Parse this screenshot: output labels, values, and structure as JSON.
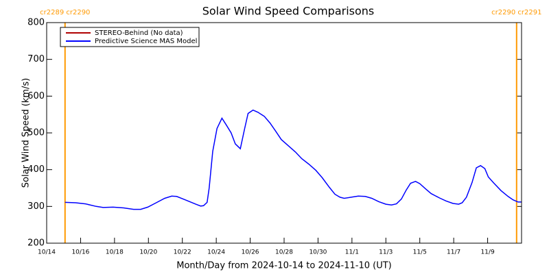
{
  "chart_data": {
    "type": "line",
    "title": "Solar Wind Speed Comparisons",
    "xlabel": "Month/Day from 2024-10-14 to 2024-11-10 (UT)",
    "ylabel": "Solar Wind Speed (km/s)",
    "xlim": [
      "2024-10-14T00:00",
      "2024-11-11T00:00"
    ],
    "ylim": [
      200,
      800
    ],
    "yticks": [
      200,
      300,
      400,
      500,
      600,
      700,
      800
    ],
    "xticks": [
      {
        "value": "2024-10-14",
        "label": "10/14"
      },
      {
        "value": "2024-10-16",
        "label": "10/16"
      },
      {
        "value": "2024-10-18",
        "label": "10/18"
      },
      {
        "value": "2024-10-20",
        "label": "10/20"
      },
      {
        "value": "2024-10-22",
        "label": "10/22"
      },
      {
        "value": "2024-10-24",
        "label": "10/24"
      },
      {
        "value": "2024-10-26",
        "label": "10/26"
      },
      {
        "value": "2024-10-28",
        "label": "10/28"
      },
      {
        "value": "2024-10-30",
        "label": "10/30"
      },
      {
        "value": "2024-11-01",
        "label": "11/1"
      },
      {
        "value": "2024-11-03",
        "label": "11/3"
      },
      {
        "value": "2024-11-05",
        "label": "11/5"
      },
      {
        "value": "2024-11-07",
        "label": "11/7"
      },
      {
        "value": "2024-11-09",
        "label": "11/9"
      }
    ],
    "legend": "upper left",
    "annotations": [
      {
        "text": "cr2289 cr2290",
        "x": "2024-10-15T02:00",
        "color": "#ff9900"
      },
      {
        "text": "cr2290 cr2291",
        "x": "2024-11-10T17:00",
        "color": "#ff9900"
      }
    ],
    "x": [
      "2024-10-15T02:00",
      "2024-10-15T17:00",
      "2024-10-16T07:00",
      "2024-10-16T22:00",
      "2024-10-17T08:00",
      "2024-10-17T22:00",
      "2024-10-18T13:00",
      "2024-10-19T03:00",
      "2024-10-19T13:00",
      "2024-10-19T23:00",
      "2024-10-20T11:00",
      "2024-10-20T23:00",
      "2024-10-21T09:00",
      "2024-10-21T16:00",
      "2024-10-22T04:00",
      "2024-10-22T19:00",
      "2024-10-23T02:00",
      "2024-10-23T06:00",
      "2024-10-23T11:00",
      "2024-10-23T14:00",
      "2024-10-23T19:00",
      "2024-10-24T01:00",
      "2024-10-24T08:00",
      "2024-10-24T14:00",
      "2024-10-24T21:00",
      "2024-10-25T03:00",
      "2024-10-25T10:00",
      "2024-10-25T16:00",
      "2024-10-25T21:00",
      "2024-10-26T04:00",
      "2024-10-26T11:00",
      "2024-10-26T20:00",
      "2024-10-27T04:00",
      "2024-10-27T12:00",
      "2024-10-27T20:00",
      "2024-10-28T06:00",
      "2024-10-28T16:00",
      "2024-10-29T01:00",
      "2024-10-29T11:00",
      "2024-10-29T21:00",
      "2024-10-30T06:00",
      "2024-10-30T16:00",
      "2024-10-31T00:00",
      "2024-10-31T07:00",
      "2024-10-31T13:00",
      "2024-10-31T23:00",
      "2024-11-01T09:00",
      "2024-11-01T19:00",
      "2024-11-02T04:00",
      "2024-11-02T14:00",
      "2024-11-03T00:00",
      "2024-11-03T08:00",
      "2024-11-03T15:00",
      "2024-11-03T22:00",
      "2024-11-04T05:00",
      "2024-11-04T11:00",
      "2024-11-04T18:00",
      "2024-11-05T00:00",
      "2024-11-05T08:00",
      "2024-11-05T16:00",
      "2024-11-06T04:00",
      "2024-11-06T13:00",
      "2024-11-06T23:00",
      "2024-11-07T07:00",
      "2024-11-07T12:00",
      "2024-11-07T18:00",
      "2024-11-08T02:00",
      "2024-11-08T08:00",
      "2024-11-08T14:00",
      "2024-11-08T20:00",
      "2024-11-09T01:00",
      "2024-11-09T09:00",
      "2024-11-09T19:00",
      "2024-11-10T05:00",
      "2024-11-10T12:00",
      "2024-11-10T19:00",
      "2024-11-11T00:00"
    ],
    "series": [
      {
        "name": "STEREO-Behind (No data)",
        "color": "#b00000"
      },
      {
        "name": "Predictive Science MAS Model",
        "color": "#0000ff",
        "values": [
          311,
          310,
          307,
          300,
          297,
          298,
          296,
          292,
          292,
          298,
          310,
          322,
          328,
          327,
          318,
          306,
          301,
          302,
          311,
          350,
          450,
          512,
          540,
          522,
          500,
          470,
          457,
          510,
          553,
          562,
          556,
          545,
          527,
          505,
          482,
          465,
          448,
          430,
          415,
          398,
          378,
          352,
          333,
          325,
          322,
          325,
          328,
          327,
          322,
          313,
          306,
          304,
          307,
          320,
          345,
          363,
          368,
          362,
          348,
          335,
          323,
          315,
          308,
          306,
          310,
          325,
          365,
          405,
          411,
          403,
          380,
          363,
          343,
          327,
          318,
          312,
          312
        ]
      }
    ]
  }
}
